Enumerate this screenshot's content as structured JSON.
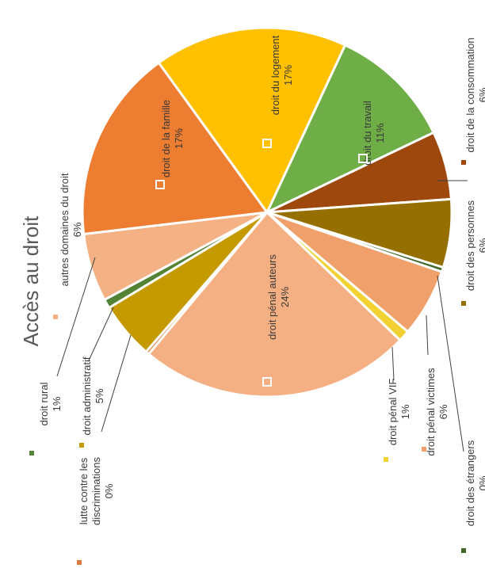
{
  "chart_data": {
    "type": "pie",
    "title": "Accès au droit",
    "slices": [
      {
        "key": "travail",
        "label": "droit du travail",
        "value_label": "11%",
        "value": 11,
        "color": "#6fad47"
      },
      {
        "key": "consommation",
        "label": "droit de la consommation",
        "value_label": "6%",
        "value": 6,
        "color": "#9e480e"
      },
      {
        "key": "personnes",
        "label": "droit des personnes",
        "value_label": "6%",
        "value": 6,
        "color": "#957000"
      },
      {
        "key": "etrangers",
        "label": "droit des étrangers",
        "value_label": "0%",
        "value": 0.4,
        "color": "#43682b"
      },
      {
        "key": "victimes",
        "label": "droit pénal victimes",
        "value_label": "6%",
        "value": 6,
        "color": "#f0a06a"
      },
      {
        "key": "vif",
        "label": "droit pénal VIF",
        "value_label": "1%",
        "value": 1,
        "color": "#f2d233"
      },
      {
        "key": "auteurs",
        "label": "droit pénal auteurs",
        "value_label": "24%",
        "value": 24,
        "color": "#f4b083"
      },
      {
        "key": "discriminations",
        "label": "lutte contre les discriminations",
        "value_label": "0%",
        "value": 0.3,
        "color": "#e07a3a"
      },
      {
        "key": "administratif",
        "label": "droit administratif",
        "value_label": "5%",
        "value": 5,
        "color": "#c49a00"
      },
      {
        "key": "rural",
        "label": "droit rural",
        "value_label": "1%",
        "value": 0.8,
        "color": "#548235"
      },
      {
        "key": "autres",
        "label": "autres domaines du droit",
        "value_label": "6%",
        "value": 6,
        "color": "#f4b183"
      },
      {
        "key": "famille",
        "label": "droit de la famille",
        "value_label": "17%",
        "value": 17,
        "color": "#ed7d31"
      },
      {
        "key": "logement",
        "label": "droit du logement",
        "value_label": "17%",
        "value": 17,
        "color": "#ffc000"
      }
    ]
  }
}
